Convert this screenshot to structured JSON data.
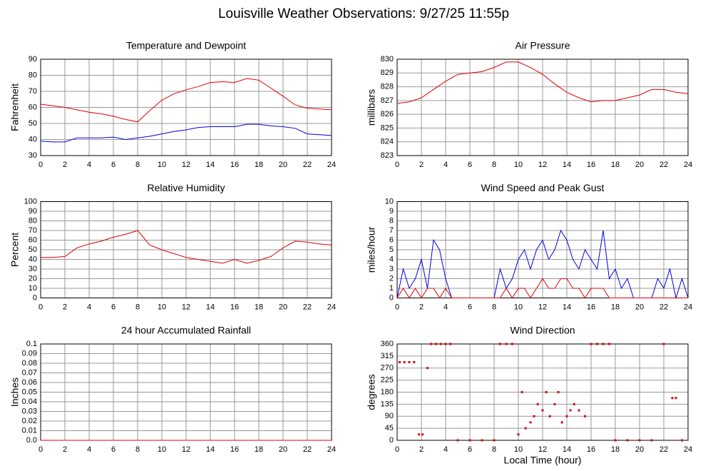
{
  "title": "Louisville Weather Observations: 9/27/25 11:55p",
  "chart_data": [
    {
      "type": "line",
      "title": "Temperature and Dewpoint",
      "ylabel": "Fahrenheit",
      "x": [
        0,
        1,
        2,
        3,
        4,
        5,
        6,
        7,
        8,
        9,
        10,
        11,
        12,
        13,
        14,
        15,
        16,
        17,
        18,
        19,
        20,
        21,
        22,
        23,
        24
      ],
      "series": [
        {
          "color": "#e00000",
          "values": [
            62,
            61,
            60,
            58.5,
            57,
            56,
            54.5,
            52.5,
            51,
            58,
            64.5,
            68.5,
            71,
            73,
            75.5,
            76,
            75.5,
            78,
            77,
            72,
            67,
            61.5,
            59.5,
            59,
            58.5
          ]
        },
        {
          "color": "#0000e0",
          "values": [
            39,
            38.5,
            38.5,
            41,
            41,
            41,
            41.5,
            40,
            41,
            42,
            43.5,
            45,
            46,
            47.5,
            48,
            48,
            48,
            49.5,
            49.5,
            48.5,
            48,
            47,
            43.5,
            43,
            42.5
          ]
        }
      ],
      "xlim": [
        0,
        24
      ],
      "xticks": [
        0,
        2,
        4,
        6,
        8,
        10,
        12,
        14,
        16,
        18,
        20,
        22,
        24
      ],
      "ylim": [
        30,
        90
      ],
      "yticks": [
        30,
        40,
        50,
        60,
        70,
        80,
        90
      ],
      "grid": true
    },
    {
      "type": "line",
      "title": "Air Pressure",
      "ylabel": "millibars",
      "x": [
        0,
        1,
        2,
        3,
        4,
        5,
        6,
        7,
        8,
        9,
        10,
        11,
        12,
        13,
        14,
        15,
        16,
        17,
        18,
        19,
        20,
        21,
        22,
        23,
        24
      ],
      "series": [
        {
          "color": "#e00000",
          "values": [
            826.8,
            826.9,
            827.2,
            827.8,
            828.4,
            828.9,
            829,
            829.1,
            829.4,
            829.8,
            829.8,
            829.4,
            828.9,
            828.2,
            827.6,
            827.2,
            826.9,
            827,
            827,
            827.2,
            827.4,
            827.8,
            827.8,
            827.6,
            827.5
          ]
        }
      ],
      "xlim": [
        0,
        24
      ],
      "xticks": [
        0,
        2,
        4,
        6,
        8,
        10,
        12,
        14,
        16,
        18,
        20,
        22,
        24
      ],
      "ylim": [
        823,
        830
      ],
      "yticks": [
        823,
        824,
        825,
        826,
        827,
        828,
        829,
        830
      ],
      "grid": true
    },
    {
      "type": "line",
      "title": "Relative Humidity",
      "ylabel": "Percent",
      "x": [
        0,
        1,
        2,
        3,
        4,
        5,
        6,
        7,
        8,
        9,
        10,
        11,
        12,
        13,
        14,
        15,
        16,
        17,
        18,
        19,
        20,
        21,
        22,
        23,
        24
      ],
      "series": [
        {
          "color": "#e00000",
          "values": [
            42,
            42,
            43,
            52,
            56,
            59,
            63,
            66,
            70,
            55,
            50,
            46,
            42,
            40,
            38,
            36,
            40,
            36,
            39,
            43,
            52,
            59,
            58,
            56,
            55
          ]
        }
      ],
      "xlim": [
        0,
        24
      ],
      "xticks": [
        0,
        2,
        4,
        6,
        8,
        10,
        12,
        14,
        16,
        18,
        20,
        22,
        24
      ],
      "ylim": [
        0,
        100
      ],
      "yticks": [
        0,
        10,
        20,
        30,
        40,
        50,
        60,
        70,
        80,
        90,
        100
      ],
      "grid": true
    },
    {
      "type": "line",
      "title": "Wind Speed and Peak Gust",
      "ylabel": "miles/hour",
      "x": [
        0,
        0.5,
        1,
        1.5,
        2,
        2.5,
        3,
        3.5,
        4,
        4.5,
        5,
        5.5,
        6,
        6.5,
        7,
        7.5,
        8,
        8.5,
        9,
        9.5,
        10,
        10.5,
        11,
        11.5,
        12,
        12.5,
        13,
        13.5,
        14,
        14.5,
        15,
        15.5,
        16,
        16.5,
        17,
        17.5,
        18,
        18.5,
        19,
        19.5,
        20,
        20.5,
        21,
        21.5,
        22,
        22.5,
        23,
        23.5,
        24
      ],
      "series": [
        {
          "color": "#0000e0",
          "values": [
            0,
            3,
            1,
            2,
            4,
            1,
            6,
            5,
            2,
            0,
            0,
            0,
            0,
            0,
            0,
            0,
            0,
            3,
            1,
            2,
            4,
            5,
            3,
            5,
            6,
            4,
            5,
            7,
            6,
            4,
            3,
            5,
            4,
            3,
            7,
            2,
            3,
            1,
            2,
            0,
            0,
            0,
            0,
            2,
            1,
            3,
            0,
            2,
            0
          ]
        },
        {
          "color": "#e00000",
          "values": [
            0,
            1,
            0,
            1,
            0,
            1,
            1,
            0,
            1,
            0,
            0,
            0,
            0,
            0,
            0,
            0,
            0,
            0,
            1,
            0,
            1,
            1,
            0,
            1,
            2,
            1,
            1,
            2,
            2,
            1,
            1,
            0,
            1,
            1,
            1,
            0,
            0,
            0,
            0,
            0,
            0,
            0,
            0,
            0,
            0,
            0,
            0,
            0,
            0
          ]
        }
      ],
      "xlim": [
        0,
        24
      ],
      "xticks": [
        0,
        2,
        4,
        6,
        8,
        10,
        12,
        14,
        16,
        18,
        20,
        22,
        24
      ],
      "ylim": [
        0,
        10
      ],
      "yticks": [
        0,
        1,
        2,
        3,
        4,
        5,
        6,
        7,
        8,
        9,
        10
      ],
      "grid": true
    },
    {
      "type": "line",
      "title": "24 hour Accumulated Rainfall",
      "ylabel": "Inches",
      "x": [
        0,
        1,
        2,
        3,
        4,
        5,
        6,
        7,
        8,
        9,
        10,
        11,
        12,
        13,
        14,
        15,
        16,
        17,
        18,
        19,
        20,
        21,
        22,
        23,
        24
      ],
      "series": [
        {
          "color": "#e00000",
          "values": [
            0,
            0,
            0,
            0,
            0,
            0,
            0,
            0,
            0,
            0,
            0,
            0,
            0,
            0,
            0,
            0,
            0,
            0,
            0,
            0,
            0,
            0,
            0,
            0,
            0
          ]
        }
      ],
      "xlim": [
        0,
        24
      ],
      "xticks": [
        0,
        2,
        4,
        6,
        8,
        10,
        12,
        14,
        16,
        18,
        20,
        22,
        24
      ],
      "ylim": [
        0,
        0.1
      ],
      "yticks": [
        {
          "value": 0,
          "label": "0.0"
        },
        0.01,
        0.02,
        0.03,
        0.04,
        0.05,
        0.06,
        0.07,
        0.08,
        0.09,
        0.1
      ],
      "grid": true
    },
    {
      "type": "scatter",
      "title": "Wind Direction",
      "ylabel": "degrees",
      "xlabel": "Local Time (hour)",
      "x": [
        0.2,
        0.6,
        1,
        1.4,
        1.8,
        2.1,
        2.5,
        2.8,
        3.2,
        3.6,
        4,
        4.4,
        5,
        6,
        7,
        8,
        8.5,
        9,
        9.5,
        10,
        10.3,
        10.6,
        11,
        11.3,
        11.6,
        12,
        12.3,
        12.6,
        13,
        13.3,
        13.6,
        14,
        14.3,
        14.6,
        15,
        15.5,
        16,
        16.5,
        17,
        17.5,
        18,
        19,
        20,
        21,
        22,
        22.7,
        23,
        23.5
      ],
      "series": [
        {
          "color": "#e00000",
          "values": [
            292,
            292,
            292,
            292,
            22,
            22,
            270,
            360,
            360,
            360,
            360,
            360,
            0,
            0,
            0,
            0,
            360,
            360,
            360,
            22,
            180,
            45,
            67,
            90,
            135,
            112,
            180,
            90,
            135,
            180,
            67,
            90,
            112,
            135,
            112,
            90,
            360,
            360,
            360,
            360,
            0,
            0,
            0,
            0,
            360,
            158,
            158,
            0
          ]
        }
      ],
      "xlim": [
        0,
        24
      ],
      "xticks": [
        0,
        2,
        4,
        6,
        8,
        10,
        12,
        14,
        16,
        18,
        20,
        22,
        24
      ],
      "ylim": [
        0,
        360
      ],
      "yticks": [
        0,
        45,
        90,
        135,
        180,
        225,
        270,
        315,
        360
      ],
      "grid": true
    }
  ]
}
